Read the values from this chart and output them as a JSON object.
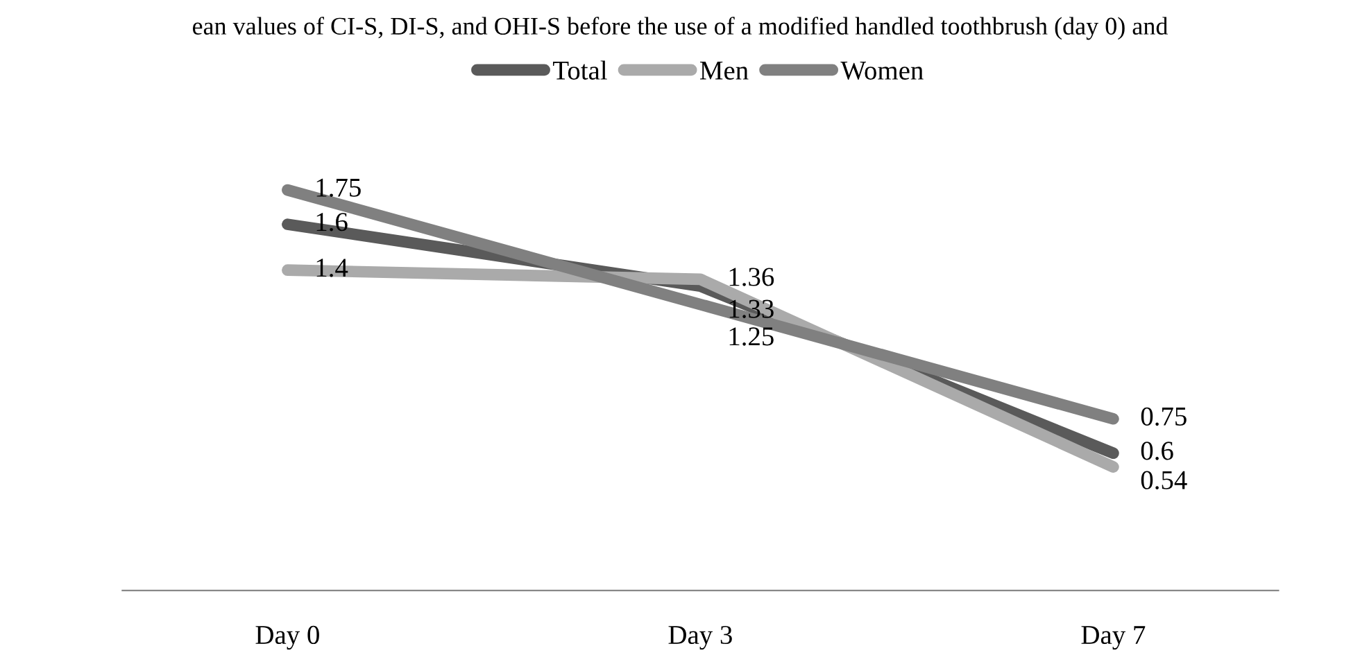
{
  "chart_data": {
    "type": "line",
    "title": "ean values of CI-S, DI-S, and OHI-S before the use of a modified handled toothbrush (day 0) and",
    "categories": [
      "Day 0",
      "Day 3",
      "Day 7"
    ],
    "series": [
      {
        "name": "Total",
        "color": "#5a5a5a",
        "values": [
          1.6,
          1.33,
          0.6
        ]
      },
      {
        "name": "Men",
        "color": "#aaaaaa",
        "values": [
          1.4,
          1.36,
          0.54
        ]
      },
      {
        "name": "Women",
        "color": "#808080",
        "values": [
          1.75,
          1.25,
          0.75
        ]
      }
    ],
    "data_labels": true,
    "legend": "top",
    "grid": false,
    "marker": "none",
    "line_style": "solid",
    "tick_labels": "x"
  }
}
